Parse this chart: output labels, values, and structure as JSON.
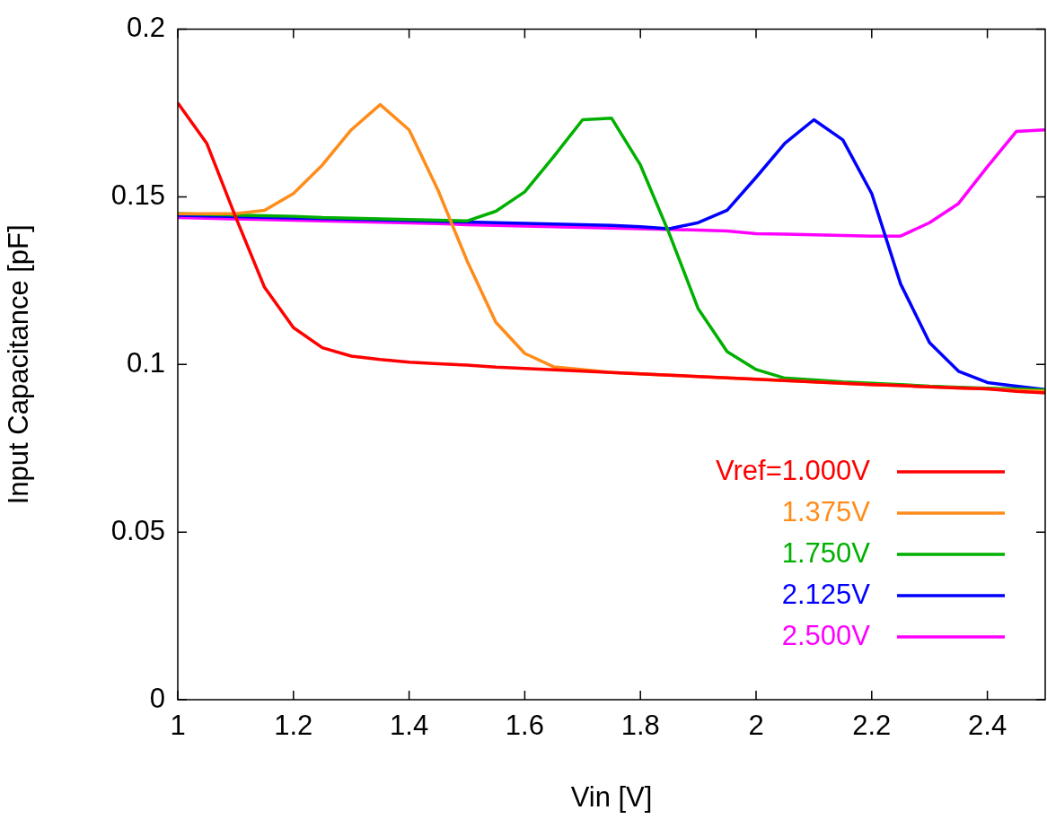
{
  "chart_data": {
    "type": "line",
    "xlabel": "Vin [V]",
    "ylabel": "Input Capacitance [pF]",
    "xlim": [
      1,
      2.5
    ],
    "xticks": [
      1,
      1.2,
      1.4,
      1.6,
      1.8,
      2,
      2.2,
      2.4
    ],
    "ylim": [
      0,
      0.2
    ],
    "yticks": [
      0,
      0.05,
      0.1,
      0.15,
      0.2
    ],
    "x": [
      1,
      1.05,
      1.1,
      1.15,
      1.2,
      1.25,
      1.3,
      1.35,
      1.4,
      1.45,
      1.5,
      1.55,
      1.6,
      1.65,
      1.7,
      1.75,
      1.8,
      1.85,
      1.9,
      1.95,
      2,
      2.05,
      2.1,
      2.15,
      2.2,
      2.25,
      2.3,
      2.35,
      2.4,
      2.45,
      2.5
    ],
    "legend": "bottom right",
    "marker": "none",
    "line_style": "solid",
    "series": [
      {
        "name": "Vref=1.000V",
        "color": "#ff0000",
        "values": [
          0.178,
          0.166,
          0.144,
          0.123,
          0.111,
          0.105,
          0.1025,
          0.1015,
          0.1007,
          0.1002,
          0.0998,
          0.0992,
          0.0988,
          0.0984,
          0.098,
          0.0976,
          0.0972,
          0.0968,
          0.0964,
          0.096,
          0.0956,
          0.0952,
          0.0948,
          0.0944,
          0.094,
          0.0937,
          0.0933,
          0.093,
          0.0927,
          0.092,
          0.0915
        ]
      },
      {
        "name": "1.375V",
        "color": "#ff8c1a",
        "values": [
          0.145,
          0.145,
          0.145,
          0.146,
          0.151,
          0.1595,
          0.17,
          0.1775,
          0.17,
          0.152,
          0.131,
          0.1126,
          0.1033,
          0.0993,
          0.0985,
          0.0976,
          0.0972,
          0.0968,
          0.0964,
          0.096,
          0.0956,
          0.0952,
          0.0948,
          0.0944,
          0.094,
          0.0937,
          0.0933,
          0.093,
          0.0927,
          0.0923,
          0.092
        ]
      },
      {
        "name": "1.750V",
        "color": "#00b000",
        "values": [
          0.145,
          0.1448,
          0.1446,
          0.1444,
          0.1442,
          0.1438,
          0.1436,
          0.1434,
          0.1432,
          0.143,
          0.1428,
          0.1457,
          0.1515,
          0.162,
          0.173,
          0.1735,
          0.1595,
          0.139,
          0.1166,
          0.1038,
          0.0985,
          0.0959,
          0.0954,
          0.0948,
          0.0944,
          0.094,
          0.0935,
          0.0932,
          0.0929,
          0.0927,
          0.0924
        ]
      },
      {
        "name": "2.125V",
        "color": "#0000ff",
        "values": [
          0.1445,
          0.1443,
          0.1441,
          0.1439,
          0.1437,
          0.1435,
          0.1433,
          0.1431,
          0.1429,
          0.1427,
          0.1425,
          0.1423,
          0.1421,
          0.1419,
          0.1417,
          0.1415,
          0.1411,
          0.1405,
          0.1423,
          0.146,
          0.1558,
          0.166,
          0.173,
          0.167,
          0.151,
          0.124,
          0.1065,
          0.098,
          0.0946,
          0.0935,
          0.0925
        ]
      },
      {
        "name": "2.500V",
        "color": "#ff00ff",
        "values": [
          0.1438,
          0.1436,
          0.1434,
          0.1432,
          0.143,
          0.1428,
          0.1426,
          0.1424,
          0.1422,
          0.142,
          0.1417,
          0.1415,
          0.1413,
          0.1411,
          0.1409,
          0.1407,
          0.1405,
          0.1403,
          0.1401,
          0.1398,
          0.139,
          0.1389,
          0.1387,
          0.1385,
          0.1383,
          0.1383,
          0.1423,
          0.148,
          0.159,
          0.1695,
          0.17
        ]
      }
    ]
  }
}
